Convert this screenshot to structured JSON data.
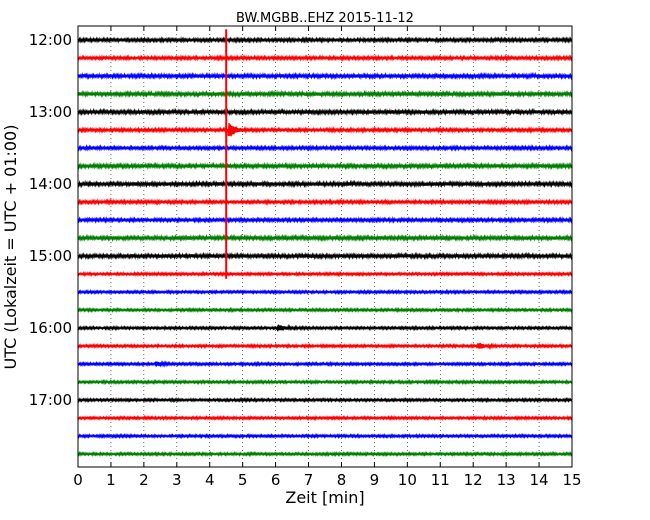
{
  "chart_data": {
    "type": "line",
    "title": "BW.MGBB..EHZ 2015-11-12",
    "xlabel": "Zeit  [min]",
    "ylabel": "UTC (Lokalzeit = UTC + 01:00)",
    "xlim": [
      0,
      15
    ],
    "xticks": [
      "0",
      "1",
      "2",
      "3",
      "4",
      "5",
      "6",
      "7",
      "8",
      "9",
      "10",
      "11",
      "12",
      "13",
      "14",
      "15"
    ],
    "yticks": [
      "12:00",
      "13:00",
      "14:00",
      "15:00",
      "16:00",
      "17:00"
    ],
    "grid": true,
    "trace_interval_minutes": 15,
    "trace_colors": [
      "#000000",
      "#ff0000",
      "#0000ff",
      "#008000"
    ],
    "traces": [
      {
        "start": "12:00",
        "color": "#000000",
        "amplitude": 0.5
      },
      {
        "start": "12:15",
        "color": "#ff0000",
        "amplitude": 0.5
      },
      {
        "start": "12:30",
        "color": "#0000ff",
        "amplitude": 0.6
      },
      {
        "start": "12:45",
        "color": "#008000",
        "amplitude": 0.6
      },
      {
        "start": "13:00",
        "color": "#000000",
        "amplitude": 0.6
      },
      {
        "start": "13:15",
        "color": "#ff0000",
        "amplitude": 0.5,
        "events": [
          {
            "minute": 4.6,
            "amplitude": 3.5
          }
        ]
      },
      {
        "start": "13:30",
        "color": "#0000ff",
        "amplitude": 0.5
      },
      {
        "start": "13:45",
        "color": "#008000",
        "amplitude": 0.6
      },
      {
        "start": "14:00",
        "color": "#000000",
        "amplitude": 0.6
      },
      {
        "start": "14:15",
        "color": "#ff0000",
        "amplitude": 0.5
      },
      {
        "start": "14:30",
        "color": "#0000ff",
        "amplitude": 0.5
      },
      {
        "start": "14:45",
        "color": "#008000",
        "amplitude": 0.6
      },
      {
        "start": "15:00",
        "color": "#000000",
        "amplitude": 0.6
      },
      {
        "start": "15:15",
        "color": "#ff0000",
        "amplitude": 0.4
      },
      {
        "start": "15:30",
        "color": "#0000ff",
        "amplitude": 0.4
      },
      {
        "start": "15:45",
        "color": "#008000",
        "amplitude": 0.4
      },
      {
        "start": "16:00",
        "color": "#000000",
        "amplitude": 0.4,
        "events": [
          {
            "minute": 6.1,
            "amplitude": 1.4
          }
        ]
      },
      {
        "start": "16:15",
        "color": "#ff0000",
        "amplitude": 0.4,
        "events": [
          {
            "minute": 12.2,
            "amplitude": 1.2
          }
        ]
      },
      {
        "start": "16:30",
        "color": "#0000ff",
        "amplitude": 0.4,
        "events": [
          {
            "minute": 2.4,
            "amplitude": 0.9
          }
        ]
      },
      {
        "start": "16:45",
        "color": "#008000",
        "amplitude": 0.4
      },
      {
        "start": "17:00",
        "color": "#000000",
        "amplitude": 0.4
      },
      {
        "start": "17:15",
        "color": "#ff0000",
        "amplitude": 0.4
      },
      {
        "start": "17:30",
        "color": "#0000ff",
        "amplitude": 0.4
      },
      {
        "start": "17:45",
        "color": "#008000",
        "amplitude": 0.4
      }
    ],
    "marker": {
      "minute": 4.5,
      "from": "11:51",
      "to": "15:19",
      "color": "#ff0000"
    }
  }
}
